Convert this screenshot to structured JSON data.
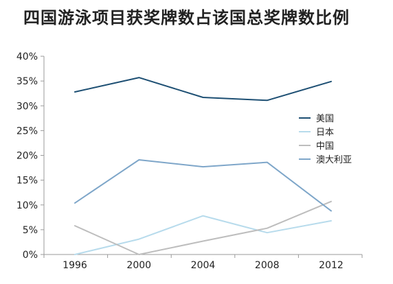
{
  "title": "四国游泳项目获奖牌数占该国总奖牌数比例",
  "chart_data": {
    "type": "line",
    "title": "四国游泳项目获奖牌数占该国总奖牌数比例",
    "xlabel": "",
    "ylabel": "",
    "categories": [
      "1996",
      "2000",
      "2004",
      "2008",
      "2012"
    ],
    "ylim": [
      0,
      40
    ],
    "yticks": [
      "0%",
      "5%",
      "10%",
      "15%",
      "20%",
      "25%",
      "30%",
      "35%",
      "40%"
    ],
    "grid": false,
    "legend_position": "right",
    "series": [
      {
        "name": "美国",
        "color": "#1d4f73",
        "values": [
          32.8,
          35.7,
          31.7,
          31.1,
          34.9
        ]
      },
      {
        "name": "日本",
        "color": "#b7dbec",
        "values": [
          0.0,
          3.1,
          7.8,
          4.4,
          6.8
        ]
      },
      {
        "name": "中国",
        "color": "#bdbdbd",
        "values": [
          5.8,
          0.0,
          2.7,
          5.3,
          10.7
        ]
      },
      {
        "name": "澳大利亚",
        "color": "#7ea6c9",
        "values": [
          10.4,
          19.1,
          17.7,
          18.6,
          8.8
        ]
      }
    ]
  }
}
